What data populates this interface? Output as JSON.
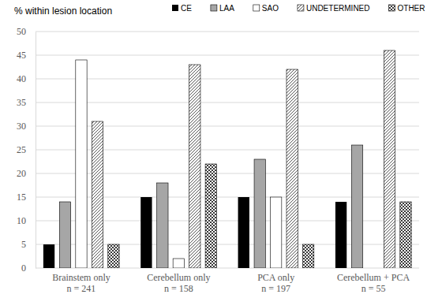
{
  "chart_data": {
    "type": "bar",
    "y_label": "% within lesion location",
    "categories": [
      [
        "Brainstem only",
        "n = 241"
      ],
      [
        "Cerebellum only",
        "n = 158"
      ],
      [
        "PCA only",
        "n = 197"
      ],
      [
        "Cerebellum + PCA",
        "n = 55"
      ]
    ],
    "series": [
      {
        "name": "CE",
        "color": "#000000",
        "values": [
          5,
          15,
          15,
          14
        ]
      },
      {
        "name": "LAA",
        "color": "#a6a6a6",
        "values": [
          14,
          18,
          23,
          26
        ]
      },
      {
        "name": "SAO",
        "color": "#ffffff",
        "values": [
          44,
          2,
          15,
          0
        ]
      },
      {
        "name": "UNDETERMINED",
        "color": "#595959",
        "values": [
          31,
          43,
          42,
          46
        ]
      },
      {
        "name": "OTHER",
        "color": "#3a3a3a",
        "values": [
          5,
          22,
          5,
          14
        ]
      }
    ],
    "ylim": [
      0,
      50
    ],
    "yticks": [
      0,
      5,
      10,
      15,
      20,
      25,
      30,
      35,
      40,
      45,
      50
    ],
    "grid": true,
    "legend": "top"
  }
}
